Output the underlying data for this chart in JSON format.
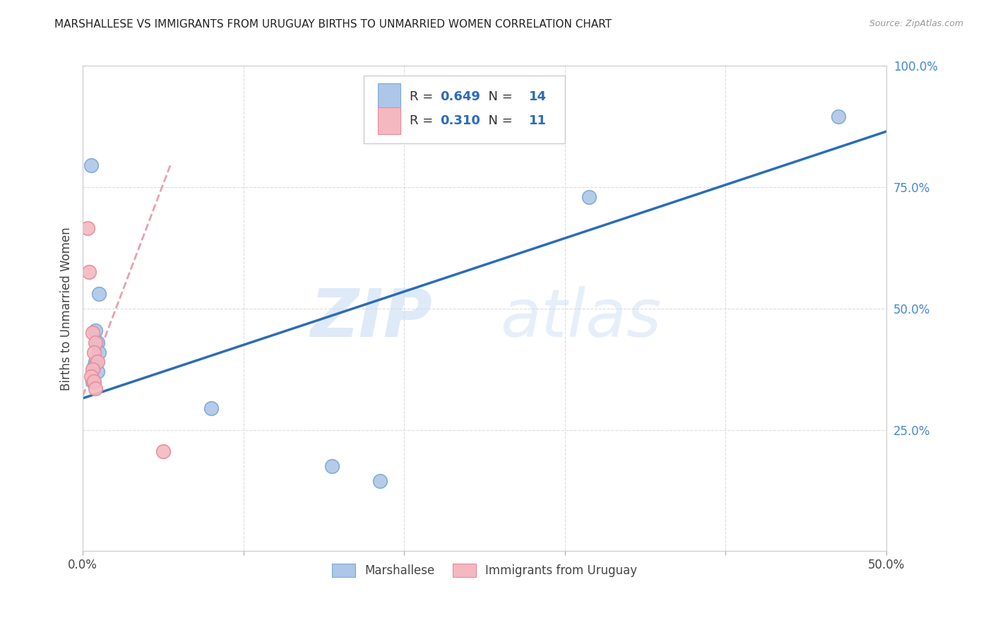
{
  "title": "MARSHALLESE VS IMMIGRANTS FROM URUGUAY BIRTHS TO UNMARRIED WOMEN CORRELATION CHART",
  "source": "Source: ZipAtlas.com",
  "ylabel_label": "Births to Unmarried Women",
  "watermark_zip": "ZIP",
  "watermark_atlas": "atlas",
  "blue_points": [
    [
      0.005,
      0.795
    ],
    [
      0.01,
      0.53
    ],
    [
      0.008,
      0.455
    ],
    [
      0.009,
      0.43
    ],
    [
      0.01,
      0.41
    ],
    [
      0.008,
      0.39
    ],
    [
      0.007,
      0.38
    ],
    [
      0.009,
      0.37
    ],
    [
      0.006,
      0.35
    ],
    [
      0.08,
      0.295
    ],
    [
      0.155,
      0.175
    ],
    [
      0.185,
      0.145
    ],
    [
      0.315,
      0.73
    ],
    [
      0.47,
      0.895
    ]
  ],
  "pink_points": [
    [
      0.003,
      0.665
    ],
    [
      0.004,
      0.575
    ],
    [
      0.006,
      0.45
    ],
    [
      0.008,
      0.43
    ],
    [
      0.007,
      0.41
    ],
    [
      0.009,
      0.39
    ],
    [
      0.006,
      0.375
    ],
    [
      0.005,
      0.36
    ],
    [
      0.007,
      0.35
    ],
    [
      0.008,
      0.335
    ],
    [
      0.05,
      0.205
    ]
  ],
  "blue_R": "0.649",
  "blue_N": "14",
  "pink_R": "0.310",
  "pink_N": "11",
  "blue_line_x": [
    0.0,
    0.5
  ],
  "blue_line_y": [
    0.315,
    0.865
  ],
  "pink_line_x": [
    0.0,
    0.055
  ],
  "pink_line_y": [
    0.32,
    0.8
  ],
  "xlim": [
    0.0,
    0.5
  ],
  "ylim": [
    0.0,
    1.0
  ],
  "xticks": [
    0.0,
    0.1,
    0.2,
    0.3,
    0.4,
    0.5
  ],
  "yticks": [
    0.0,
    0.25,
    0.5,
    0.75,
    1.0
  ],
  "xtick_labels": [
    "0.0%",
    "",
    "",
    "",
    "",
    "50.0%"
  ],
  "ytick_labels": [
    "",
    "25.0%",
    "50.0%",
    "75.0%",
    "100.0%"
  ],
  "blue_color": "#aec6e8",
  "pink_color": "#f4b8c1",
  "blue_scatter_edge": "#7aaad0",
  "pink_scatter_edge": "#e88a9a",
  "blue_line_color": "#2b6cb8",
  "pink_dashed_color": "#e8a0b0",
  "grid_color": "#dddddd",
  "title_color": "#222222",
  "axis_label_color": "#444444",
  "tick_label_color_right": "#4488cc",
  "legend_R_color": "#2b6cb8",
  "legend_N_color": "#222222",
  "marker_size": 200
}
